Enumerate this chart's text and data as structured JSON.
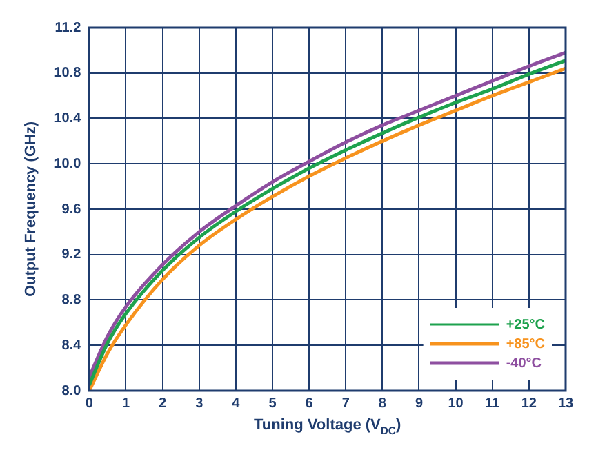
{
  "chart_data": {
    "type": "line",
    "xlabel": "Tuning Voltage (V$_{DC}$)",
    "ylabel": "Output Frequency (GHz)",
    "x": [
      0,
      0.5,
      1,
      2,
      3,
      4,
      5,
      6,
      7,
      8,
      9,
      10,
      11,
      12,
      13
    ],
    "series": [
      {
        "name": "+25°C",
        "color": "#1ea24e",
        "values": [
          8.05,
          8.42,
          8.68,
          9.06,
          9.35,
          9.58,
          9.78,
          9.96,
          10.12,
          10.27,
          10.41,
          10.54,
          10.66,
          10.79,
          10.91
        ]
      },
      {
        "name": "+85°C",
        "color": "#f7931e",
        "values": [
          8.0,
          8.33,
          8.58,
          8.98,
          9.28,
          9.51,
          9.71,
          9.89,
          10.05,
          10.2,
          10.34,
          10.47,
          10.6,
          10.72,
          10.84
        ]
      },
      {
        "name": "-40°C",
        "color": "#8e4fa0",
        "values": [
          8.12,
          8.48,
          8.74,
          9.11,
          9.4,
          9.63,
          9.84,
          10.02,
          10.19,
          10.34,
          10.47,
          10.6,
          10.73,
          10.86,
          10.98
        ]
      }
    ],
    "xlim": [
      0,
      13
    ],
    "xticks": [
      0,
      1,
      2,
      3,
      4,
      5,
      6,
      7,
      8,
      9,
      10,
      11,
      12,
      13
    ],
    "ylim": [
      8.0,
      11.2
    ],
    "yticks": [
      {
        "value": 8.0,
        "label": "8.0"
      },
      {
        "value": 8.4,
        "label": "8.4"
      },
      {
        "value": 8.8,
        "label": "8.8"
      },
      {
        "value": 9.2,
        "label": "9.2"
      },
      {
        "value": 9.6,
        "label": "9.6"
      },
      {
        "value": 10.0,
        "label": "10.0"
      },
      {
        "value": 10.4,
        "label": "10.4"
      },
      {
        "value": 10.8,
        "label": "10.8"
      },
      {
        "value": 11.2,
        "label": "11.2"
      }
    ],
    "grid": true,
    "legend": "bottom right",
    "marker": "none",
    "line_style": "solid"
  }
}
